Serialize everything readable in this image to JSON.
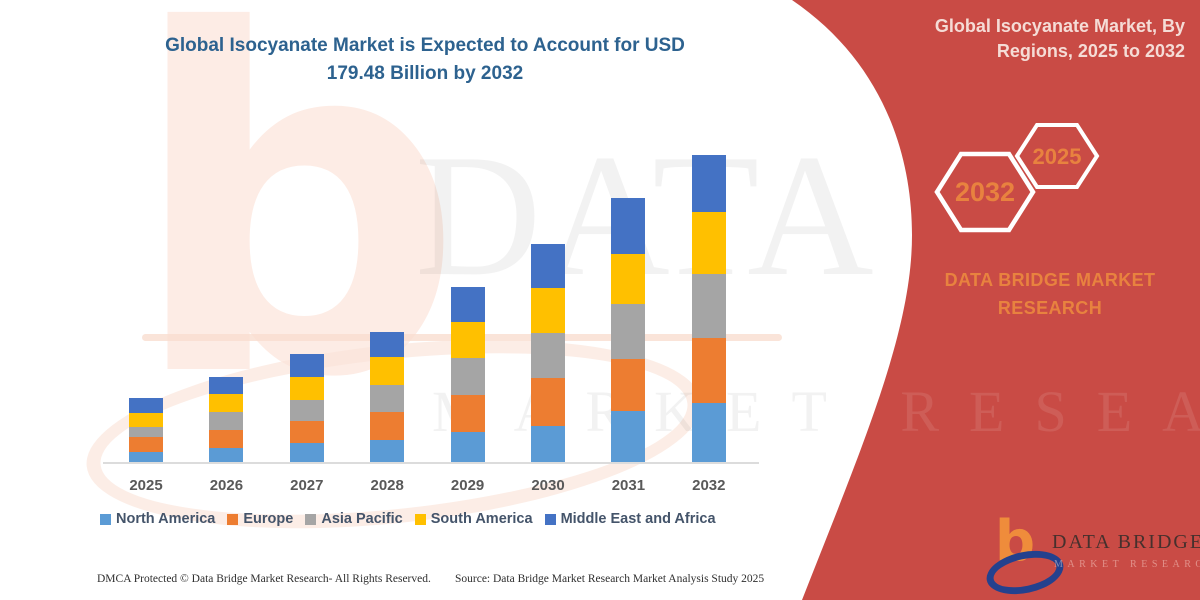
{
  "header": {
    "title_line1": "Global Isocyanate Market is Expected to Account for USD",
    "title_line2": "179.48 Billion by 2032"
  },
  "panel": {
    "title_line1": "Global Isocyanate Market, By",
    "title_line2": "Regions, 2025 to 2032",
    "hexagons": [
      {
        "label": "2032"
      },
      {
        "label": "2025"
      }
    ],
    "brand_line1": "DATA BRIDGE MARKET",
    "brand_line2": "RESEARCH",
    "background_color": "#c94b45",
    "accent_color": "#e8823f"
  },
  "logo": {
    "name": "DATA BRIDGE",
    "subtitle": "MARKET RESEARCH",
    "b_color": "#ef8c3b",
    "swoosh_color": "#24418e"
  },
  "watermark": {
    "text_line1": "DATA BRIDGE",
    "text_line2": "MARKET RESEARCH"
  },
  "footer": {
    "left": "DMCA Protected © Data Bridge Market Research-  All Rights Reserved.",
    "right": "Source: Data Bridge Market Research  Market Analysis Study 2025"
  },
  "chart_data": {
    "type": "bar",
    "stacked": true,
    "title": "Global Isocyanate Market is Expected to Account for USD 179.48 Billion by 2032",
    "unit": "USD Billion",
    "values_estimated_from_bar_heights": true,
    "categories": [
      "2025",
      "2026",
      "2027",
      "2028",
      "2029",
      "2030",
      "2031",
      "2032"
    ],
    "series": [
      {
        "name": "North America",
        "color": "#5b9bd5",
        "values": [
          6.4,
          8.7,
          11.7,
          13.4,
          18.1,
          21.6,
          30.3,
          35.0
        ]
      },
      {
        "name": "Europe",
        "color": "#ed7d31",
        "values": [
          8.7,
          10.5,
          12.8,
          16.3,
          21.6,
          28.0,
          30.3,
          37.9
        ]
      },
      {
        "name": "Asia Pacific",
        "color": "#a5a5a5",
        "values": [
          5.8,
          10.5,
          12.2,
          15.7,
          21.6,
          26.2,
          32.0,
          37.3
        ]
      },
      {
        "name": "South America",
        "color": "#ffc000",
        "values": [
          8.2,
          10.5,
          13.4,
          16.3,
          21.0,
          26.2,
          29.1,
          36.1
        ]
      },
      {
        "name": "Middle East and Africa",
        "color": "#4472c4",
        "values": [
          8.7,
          9.9,
          13.4,
          14.6,
          20.4,
          25.6,
          32.6,
          33.2
        ]
      }
    ],
    "totals": [
      37.8,
      50.1,
      63.5,
      76.3,
      102.7,
      127.6,
      154.3,
      179.5
    ],
    "ylim": [
      0,
      185
    ],
    "xlabel": "",
    "ylabel": "",
    "gridlines": false,
    "y_axis_visible": false,
    "x_axis_visible": true,
    "legend_position": "bottom"
  }
}
